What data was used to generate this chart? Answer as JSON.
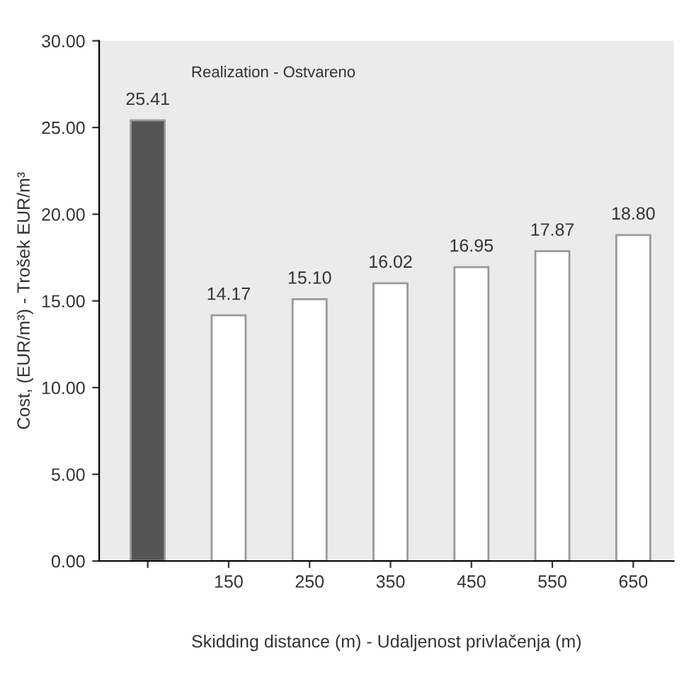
{
  "chart_data": {
    "type": "bar",
    "categories": [
      null,
      "150",
      "250",
      "350",
      "450",
      "550",
      "650"
    ],
    "values": [
      25.41,
      14.17,
      15.1,
      16.02,
      16.95,
      17.87,
      18.8
    ],
    "value_labels": [
      "25.41",
      "14.17",
      "15.10",
      "16.02",
      "16.95",
      "17.87",
      "18.80"
    ],
    "colors": [
      "#555555",
      "#ffffff",
      "#ffffff",
      "#ffffff",
      "#ffffff",
      "#ffffff",
      "#ffffff"
    ],
    "ylabel": "Cost, (EUR/m³) - Trošek EUR/m³",
    "xlabel": "Skidding distance (m) - Udaljenost privlačenja (m)",
    "annotations": [
      "Realization - Ostvareno"
    ],
    "ylim": [
      0,
      30
    ],
    "yticks": [
      {
        "value": 0,
        "label": "0.00"
      },
      {
        "value": 5,
        "label": "5.00"
      },
      {
        "value": 10,
        "label": "10.00"
      },
      {
        "value": 15,
        "label": "15.00"
      },
      {
        "value": 20,
        "label": "20.00"
      },
      {
        "value": 25,
        "label": "25.00"
      },
      {
        "value": 30,
        "label": "30.00"
      }
    ],
    "grid": false,
    "legend": false
  }
}
